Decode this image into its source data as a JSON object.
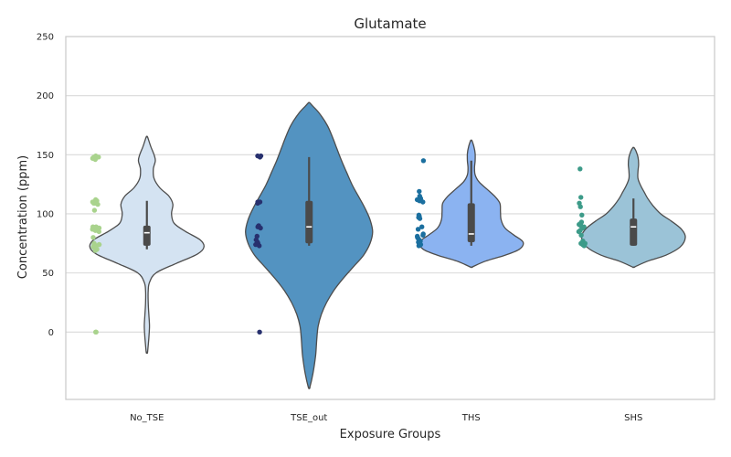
{
  "chart_data": {
    "type": "violin",
    "title": "Glutamate",
    "xlabel": "Exposure Groups",
    "ylabel": "Concentration (ppm)",
    "ylim": [
      -57,
      250
    ],
    "yticks": [
      0,
      50,
      100,
      150,
      200,
      250
    ],
    "grid": "horizontal",
    "categories": [
      "No_TSE",
      "TSE_out",
      "THS",
      "SHS"
    ],
    "groups": [
      {
        "name": "No_TSE",
        "violin_color": "#d4e3f2",
        "point_color": "#a9d38d",
        "kde_range": [
          -17,
          165
        ],
        "kde_width": [
          [
            -17,
            0.01
          ],
          [
            -5,
            0.03
          ],
          [
            5,
            0.04
          ],
          [
            15,
            0.03
          ],
          [
            25,
            0.02
          ],
          [
            35,
            0.02
          ],
          [
            42,
            0.04
          ],
          [
            50,
            0.14
          ],
          [
            58,
            0.45
          ],
          [
            66,
            0.78
          ],
          [
            72,
            0.88
          ],
          [
            78,
            0.82
          ],
          [
            85,
            0.6
          ],
          [
            92,
            0.42
          ],
          [
            100,
            0.38
          ],
          [
            108,
            0.4
          ],
          [
            115,
            0.34
          ],
          [
            122,
            0.2
          ],
          [
            130,
            0.11
          ],
          [
            138,
            0.1
          ],
          [
            145,
            0.13
          ],
          [
            150,
            0.11
          ],
          [
            157,
            0.06
          ],
          [
            165,
            0.01
          ]
        ],
        "quartiles": [
          73,
          84,
          90
        ],
        "whiskers": [
          70,
          111
        ],
        "median": 84,
        "points": [
          0,
          0,
          147,
          148,
          146,
          149,
          147,
          148,
          111,
          109,
          110,
          108,
          111,
          110,
          112,
          109,
          88,
          87,
          89,
          86,
          88,
          87,
          85,
          88,
          89,
          86,
          74,
          72,
          71,
          73,
          70,
          75,
          72,
          74,
          69,
          73,
          71,
          103,
          80
        ]
      },
      {
        "name": "TSE_out",
        "violin_color": "#5393c1",
        "point_color": "#27306e",
        "kde_range": [
          -47,
          194
        ],
        "kde_width": [
          [
            -47,
            0.01
          ],
          [
            -35,
            0.06
          ],
          [
            -20,
            0.1
          ],
          [
            -5,
            0.12
          ],
          [
            5,
            0.14
          ],
          [
            15,
            0.19
          ],
          [
            25,
            0.27
          ],
          [
            35,
            0.38
          ],
          [
            45,
            0.52
          ],
          [
            55,
            0.68
          ],
          [
            65,
            0.84
          ],
          [
            75,
            0.94
          ],
          [
            85,
            0.98
          ],
          [
            95,
            0.94
          ],
          [
            105,
            0.86
          ],
          [
            115,
            0.76
          ],
          [
            125,
            0.66
          ],
          [
            135,
            0.58
          ],
          [
            145,
            0.5
          ],
          [
            155,
            0.43
          ],
          [
            165,
            0.36
          ],
          [
            175,
            0.28
          ],
          [
            185,
            0.16
          ],
          [
            191,
            0.06
          ],
          [
            194,
            0.01
          ]
        ],
        "quartiles": [
          75,
          89,
          111
        ],
        "whiskers": [
          73,
          148
        ],
        "median": 89,
        "points": [
          0,
          149,
          148,
          149,
          110,
          109,
          110,
          90,
          89,
          88,
          81,
          78,
          76,
          75,
          74,
          73
        ]
      },
      {
        "name": "THS",
        "violin_color": "#8bb3f1",
        "point_color": "#1b6f9f",
        "kde_range": [
          55,
          162
        ],
        "kde_width": [
          [
            55,
            0.01
          ],
          [
            60,
            0.22
          ],
          [
            65,
            0.52
          ],
          [
            70,
            0.74
          ],
          [
            76,
            0.8
          ],
          [
            82,
            0.66
          ],
          [
            88,
            0.52
          ],
          [
            95,
            0.46
          ],
          [
            102,
            0.45
          ],
          [
            109,
            0.44
          ],
          [
            115,
            0.36
          ],
          [
            121,
            0.24
          ],
          [
            127,
            0.12
          ],
          [
            133,
            0.06
          ],
          [
            139,
            0.05
          ],
          [
            145,
            0.06
          ],
          [
            151,
            0.06
          ],
          [
            157,
            0.04
          ],
          [
            162,
            0.01
          ]
        ],
        "quartiles": [
          76,
          83,
          109
        ],
        "whiskers": [
          73,
          145
        ],
        "median": 83,
        "points": [
          145,
          119,
          115,
          113,
          112,
          111,
          110,
          99,
          98,
          97,
          96,
          89,
          87,
          83,
          82,
          81,
          80,
          79,
          78,
          77,
          76,
          75,
          74,
          73,
          74,
          75
        ]
      },
      {
        "name": "SHS",
        "violin_color": "#9bc3d7",
        "point_color": "#3d9b89",
        "kde_range": [
          55,
          156
        ],
        "kde_width": [
          [
            55,
            0.01
          ],
          [
            60,
            0.22
          ],
          [
            65,
            0.5
          ],
          [
            72,
            0.72
          ],
          [
            80,
            0.8
          ],
          [
            87,
            0.74
          ],
          [
            94,
            0.58
          ],
          [
            100,
            0.42
          ],
          [
            107,
            0.3
          ],
          [
            113,
            0.22
          ],
          [
            118,
            0.17
          ],
          [
            124,
            0.11
          ],
          [
            130,
            0.07
          ],
          [
            136,
            0.07
          ],
          [
            142,
            0.08
          ],
          [
            148,
            0.07
          ],
          [
            153,
            0.04
          ],
          [
            156,
            0.01
          ]
        ],
        "quartiles": [
          73,
          89,
          96
        ],
        "whiskers": [
          73,
          113
        ],
        "median": 89,
        "points": [
          138,
          114,
          109,
          106,
          99,
          93,
          92,
          91,
          90,
          89,
          88,
          86,
          85,
          82,
          77,
          76,
          75,
          74,
          73,
          74,
          75
        ]
      }
    ]
  }
}
